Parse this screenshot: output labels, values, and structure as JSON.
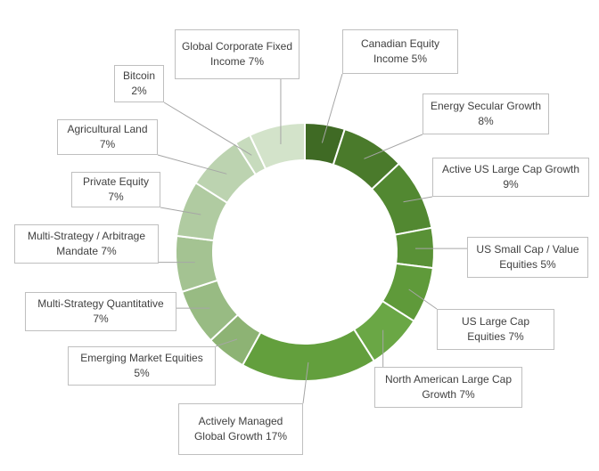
{
  "chart_data": {
    "type": "donut",
    "categories": [
      "Canadian Equity Income",
      "Energy Secular Growth",
      "Active US Large Cap Growth",
      "US Small Cap / Value Equities",
      "US Large Cap Equities",
      "North American Large Cap Growth",
      "Actively Managed Global Growth",
      "Emerging Market Equities",
      "Multi-Strategy Quantitative",
      "Multi-Strategy / Arbitrage Mandate",
      "Private Equity",
      "Agricultural Land",
      "Bitcoin",
      "Global Corporate Fixed Income"
    ],
    "values": [
      5,
      8,
      9,
      5,
      7,
      7,
      17,
      5,
      7,
      7,
      7,
      7,
      2,
      7
    ],
    "value_labels": [
      "5%",
      "8%",
      "9%",
      "5%",
      "7%",
      "7%",
      "17%",
      "5%",
      "7%",
      "7%",
      "7%",
      "7%",
      "2%",
      "7%"
    ],
    "colors": [
      "#3f6a24",
      "#4a7a2b",
      "#528831",
      "#599136",
      "#5f9a3a",
      "#6aa745",
      "#639f3d",
      "#8db374",
      "#98bb83",
      "#a4c392",
      "#b0cba1",
      "#bcd3b0",
      "#c7dbbd",
      "#d3e3ca"
    ]
  }
}
